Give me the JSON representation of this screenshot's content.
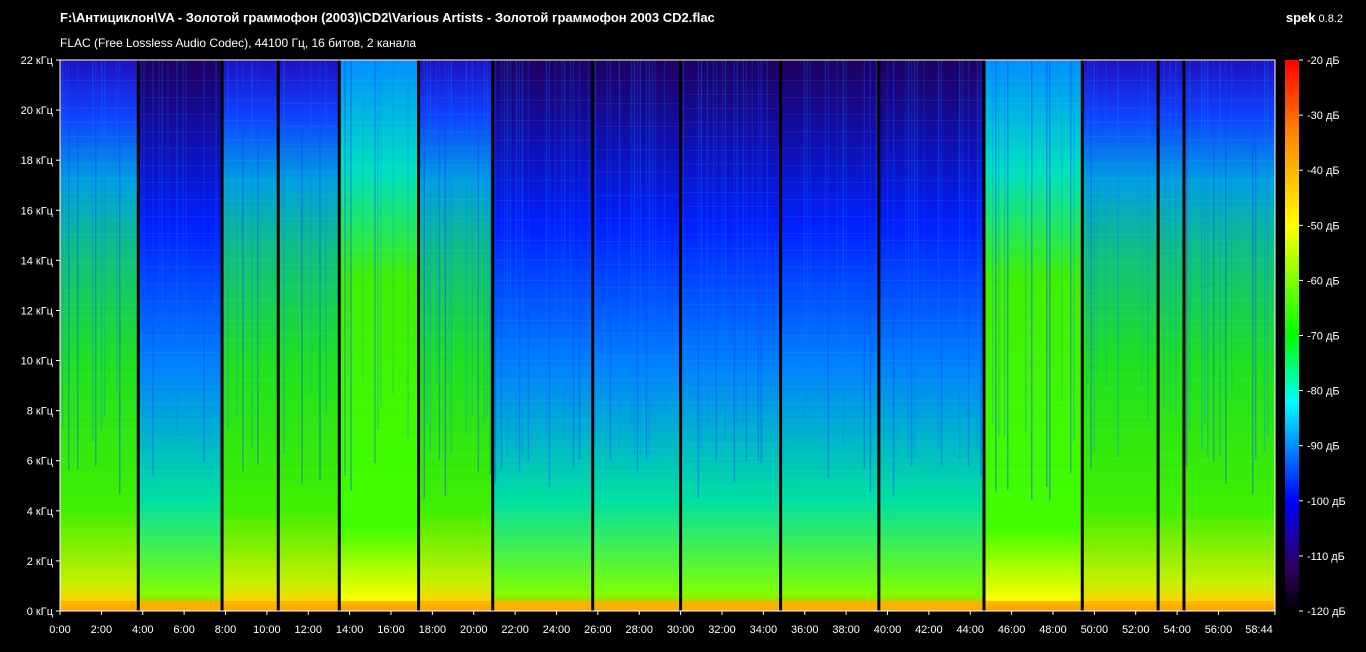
{
  "window": {
    "file_path": "F:\\Антициклон\\VA - Золотой граммофон (2003)\\CD2\\Various Artists - Золотой граммофон 2003 CD2.flac",
    "file_info": "FLAC (Free Lossless Audio Codec), 44100 Гц, 16 битов, 2 канала",
    "app_name": "spek",
    "app_version": "0.8.2"
  },
  "spectrogram": {
    "frequency_ticks": [
      "0 кГц",
      "2 кГц",
      "4 кГц",
      "6 кГц",
      "8 кГц",
      "10 кГц",
      "12 кГц",
      "14 кГц",
      "16 кГц",
      "18 кГц",
      "20 кГц",
      "22 кГц"
    ],
    "time_ticks": [
      "0:00",
      "2:00",
      "4:00",
      "6:00",
      "8:00",
      "10:00",
      "12:00",
      "14:00",
      "16:00",
      "18:00",
      "20:00",
      "22:00",
      "24:00",
      "26:00",
      "28:00",
      "30:00",
      "32:00",
      "34:00",
      "36:00",
      "38:00",
      "40:00",
      "42:00",
      "44:00",
      "46:00",
      "48:00",
      "50:00",
      "52:00",
      "54:00",
      "56:00",
      "58:44"
    ],
    "level_ticks": [
      "-20 дБ",
      "-30 дБ",
      "-40 дБ",
      "-50 дБ",
      "-60 дБ",
      "-70 дБ",
      "-80 дБ",
      "-90 дБ",
      "-100 дБ",
      "-110 дБ",
      "-120 дБ"
    ],
    "duration_seconds": 3524,
    "track_boundaries_seconds": [
      227,
      470,
      633,
      810,
      1040,
      1255,
      1545,
      1800,
      2090,
      2375,
      2680,
      2965,
      3185,
      3260
    ],
    "colors": {
      "scale": [
        "#ff0000",
        "#ff7a00",
        "#ffff00",
        "#00ff00",
        "#00ffff",
        "#0000ff",
        "#200040",
        "#000000"
      ]
    }
  }
}
